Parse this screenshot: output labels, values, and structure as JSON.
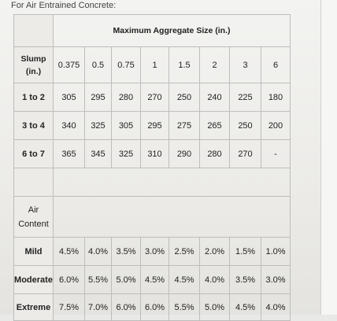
{
  "caption": "For Air Entrained Concrete:",
  "table": {
    "header_title": "Maximum Aggregate Size (in.)",
    "slump_label_line1": "Slump",
    "slump_label_line2": "(in.)",
    "sizes": [
      "0.375",
      "0.5",
      "0.75",
      "1",
      "1.5",
      "2",
      "3",
      "6"
    ],
    "water_rows": [
      {
        "label": "1 to 2",
        "values": [
          "305",
          "295",
          "280",
          "270",
          "250",
          "240",
          "225",
          "180"
        ]
      },
      {
        "label": "3 to 4",
        "values": [
          "340",
          "325",
          "305",
          "295",
          "275",
          "265",
          "250",
          "200"
        ]
      },
      {
        "label": "6 to 7",
        "values": [
          "365",
          "345",
          "325",
          "310",
          "290",
          "280",
          "270",
          "-"
        ]
      }
    ],
    "air_label_line1": "Air",
    "air_label_line2": "Content",
    "air_rows": [
      {
        "label": "Mild",
        "values": [
          "4.5%",
          "4.0%",
          "3.5%",
          "3.0%",
          "2.5%",
          "2.0%",
          "1.5%",
          "1.0%"
        ]
      },
      {
        "label": "Moderate",
        "values": [
          "6.0%",
          "5.5%",
          "5.0%",
          "4.5%",
          "4.5%",
          "4.0%",
          "3.5%",
          "3.0%"
        ]
      },
      {
        "label": "Extreme",
        "values": [
          "7.5%",
          "7.0%",
          "6.0%",
          "6.0%",
          "5.5%",
          "5.0%",
          "4.5%",
          "4.0%"
        ]
      }
    ]
  }
}
